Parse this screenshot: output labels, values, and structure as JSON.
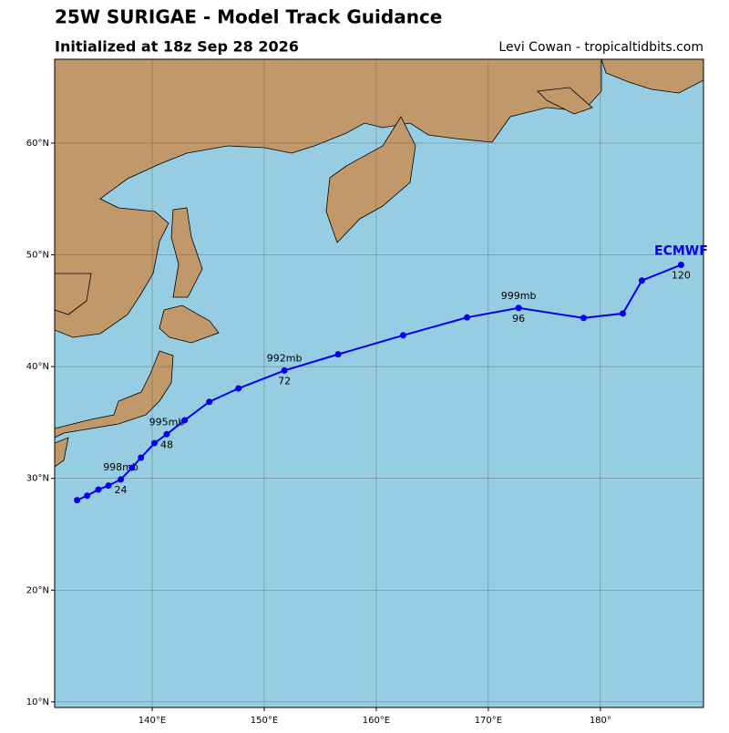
{
  "chart_data": {
    "type": "track",
    "title": "25W SURIGAE - Model Track Guidance",
    "subtitle": "Initialized at 18z Sep 28 2026",
    "credit": "Levi Cowan - tropicaltidbits.com",
    "xlim": [
      131.3,
      189.2
    ],
    "ylim": [
      9.5,
      67.5
    ],
    "grid": true,
    "xticks": [
      {
        "value": 140,
        "label": "140°E"
      },
      {
        "value": 150,
        "label": "150°E"
      },
      {
        "value": 160,
        "label": "160°E"
      },
      {
        "value": 170,
        "label": "170°E"
      },
      {
        "value": 180,
        "label": "180°"
      }
    ],
    "yticks": [
      {
        "value": 10,
        "label": "10°N"
      },
      {
        "value": 20,
        "label": "20°N"
      },
      {
        "value": 30,
        "label": "30°N"
      },
      {
        "value": 40,
        "label": "40°N"
      },
      {
        "value": 50,
        "label": "50°N"
      },
      {
        "value": 60,
        "label": "60°N"
      }
    ],
    "series": [
      {
        "name": "ECMWF",
        "color": "#0000ee",
        "x": [
          133.3,
          134.2,
          135.2,
          136.1,
          137.2,
          138.2,
          139.0,
          140.2,
          141.3,
          142.9,
          145.1,
          147.7,
          151.8,
          156.6,
          162.4,
          168.1,
          172.7,
          178.5,
          182.0,
          183.7,
          187.2
        ],
        "values": [
          28.05,
          28.45,
          29.0,
          29.35,
          29.9,
          30.95,
          31.85,
          33.15,
          33.95,
          35.2,
          36.85,
          38.05,
          39.65,
          41.1,
          42.8,
          44.4,
          45.25,
          44.35,
          44.75,
          47.7,
          49.1
        ],
        "pressure_labels": [
          null,
          null,
          null,
          null,
          "998mb",
          null,
          null,
          null,
          "995mb",
          null,
          null,
          null,
          "992mb",
          null,
          null,
          null,
          "999mb",
          null,
          null,
          null,
          null
        ],
        "hour_labels": [
          null,
          null,
          null,
          null,
          24,
          null,
          null,
          null,
          48,
          null,
          null,
          null,
          72,
          null,
          null,
          null,
          96,
          null,
          null,
          null,
          120
        ]
      }
    ]
  }
}
